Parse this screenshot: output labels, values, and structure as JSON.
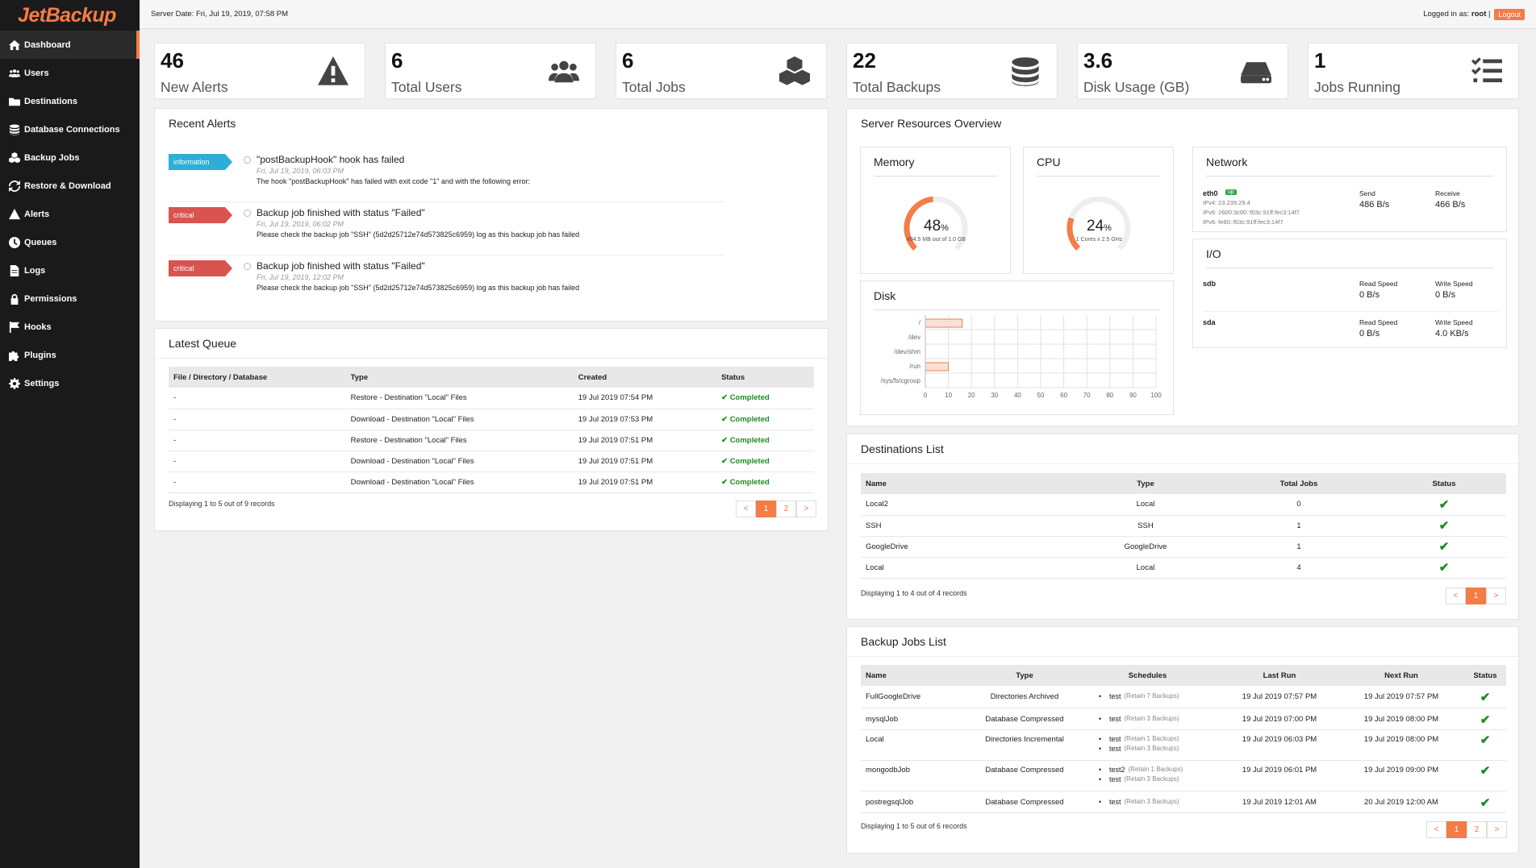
{
  "brand": {
    "logo_text": "JetBackup"
  },
  "sidebar": {
    "items": [
      {
        "label": "Dashboard",
        "icon": "home-icon"
      },
      {
        "label": "Users",
        "icon": "users-icon"
      },
      {
        "label": "Destinations",
        "icon": "folder-icon"
      },
      {
        "label": "Database Connections",
        "icon": "database-icon"
      },
      {
        "label": "Backup Jobs",
        "icon": "cubes-icon"
      },
      {
        "label": "Restore & Download",
        "icon": "sync-icon"
      },
      {
        "label": "Alerts",
        "icon": "warning-icon"
      },
      {
        "label": "Queues",
        "icon": "clock-icon"
      },
      {
        "label": "Logs",
        "icon": "file-icon"
      },
      {
        "label": "Permissions",
        "icon": "lock-icon"
      },
      {
        "label": "Hooks",
        "icon": "flag-icon"
      },
      {
        "label": "Plugins",
        "icon": "puzzle-icon"
      },
      {
        "label": "Settings",
        "icon": "gear-icon"
      }
    ]
  },
  "topbar": {
    "server_date": "Server Date: Fri, Jul 19, 2019, 07:58 PM",
    "logged_in": "Logged in as:",
    "user": "root",
    "sep": "|",
    "logout": "Logout"
  },
  "stats": [
    {
      "value": "46",
      "label": "New Alerts",
      "icon": "warning-icon"
    },
    {
      "value": "6",
      "label": "Total Users",
      "icon": "users-icon"
    },
    {
      "value": "6",
      "label": "Total Jobs",
      "icon": "cubes-icon"
    },
    {
      "value": "22",
      "label": "Total Backups",
      "icon": "database-icon"
    },
    {
      "value": "3.6",
      "label": "Disk Usage (GB)",
      "icon": "hdd-icon"
    },
    {
      "value": "1",
      "label": "Jobs Running",
      "icon": "tasks-icon"
    }
  ],
  "recent_alerts": {
    "title": "Recent Alerts",
    "items": [
      {
        "level": "information",
        "title": "\"postBackupHook\" hook has failed",
        "date": "Fri, Jul 19, 2019, 06:03 PM",
        "message": "The hook \"postBackupHook\" has failed with exit code \"1\" and with the following error:"
      },
      {
        "level": "critical",
        "title": "Backup job finished with status \"Failed\"",
        "date": "Fri, Jul 19, 2019, 06:02 PM",
        "message": "Please check the backup job \"SSH\" (5d2d25712e74d573825c6959) log as this backup job has failed"
      },
      {
        "level": "critical",
        "title": "Backup job finished with status \"Failed\"",
        "date": "Fri, Jul 19, 2019, 12:02 PM",
        "message": "Please check the backup job \"SSH\" (5d2d25712e74d573825c6959) log as this backup job has failed"
      }
    ]
  },
  "queue": {
    "title": "Latest Queue",
    "headers": [
      "File / Directory / Database",
      "Type",
      "Created",
      "Status"
    ],
    "rows": [
      [
        "-",
        "Restore - Destination \"Local\" Files",
        "19 Jul 2019 07:54 PM",
        "Completed"
      ],
      [
        "-",
        "Download - Destination \"Local\" Files",
        "19 Jul 2019 07:53 PM",
        "Completed"
      ],
      [
        "-",
        "Restore - Destination \"Local\" Files",
        "19 Jul 2019 07:51 PM",
        "Completed"
      ],
      [
        "-",
        "Download - Destination \"Local\" Files",
        "19 Jul 2019 07:51 PM",
        "Completed"
      ],
      [
        "-",
        "Download - Destination \"Local\" Files",
        "19 Jul 2019 07:51 PM",
        "Completed"
      ]
    ],
    "footer": "Displaying 1 to 5 out of 9 records",
    "pages": [
      "<",
      "1",
      "2",
      ">"
    ]
  },
  "resources": {
    "title": "Server Resources Overview",
    "memory": {
      "title": "Memory",
      "percent": 48,
      "value": "48",
      "unit": "%",
      "detail": "494.5 MB out of 1.0 GB"
    },
    "cpu": {
      "title": "CPU",
      "percent": 24,
      "value": "24",
      "unit": "%",
      "detail": "1 Cores x 2.5 GHz"
    },
    "network": {
      "title": "Network",
      "iface": "eth0",
      "status": "up",
      "ipv4": "IPv4: 23.239.29.4",
      "ipv6a": "IPv6: 2600:3c00::f03c:91ff:fec3:14f7",
      "ipv6b": "IPv6: fe80::f03c:91ff:fec3:14f7",
      "send_label": "Send",
      "send": "486 B/s",
      "receive_label": "Receive",
      "receive": "466 B/s"
    },
    "io": {
      "title": "I/O",
      "devices": [
        {
          "name": "sdb",
          "read_label": "Read Speed",
          "read": "0 B/s",
          "write_label": "Write Speed",
          "write": "0 B/s"
        },
        {
          "name": "sda",
          "read_label": "Read Speed",
          "read": "0 B/s",
          "write_label": "Write Speed",
          "write": "4.0 KB/s"
        }
      ]
    },
    "disk": {
      "title": "Disk"
    }
  },
  "chart_data": {
    "type": "bar",
    "orientation": "horizontal",
    "categories": [
      "/",
      "/dev",
      "/dev/shm",
      "/run",
      "/sys/fs/cgroup"
    ],
    "values": [
      16,
      0,
      0,
      10,
      0
    ],
    "xlim": [
      0,
      100
    ],
    "xticks": [
      "0",
      "10",
      "20",
      "30",
      "40",
      "50",
      "60",
      "70",
      "80",
      "90",
      "100"
    ],
    "grid": true,
    "color": "#f47c45"
  },
  "destinations": {
    "title": "Destinations List",
    "headers": [
      "Name",
      "Type",
      "Total Jobs",
      "Status"
    ],
    "rows": [
      [
        "Local2",
        "Local",
        "0"
      ],
      [
        "SSH",
        "SSH",
        "1"
      ],
      [
        "GoogleDrive",
        "GoogleDrive",
        "1"
      ],
      [
        "Local",
        "Local",
        "4"
      ]
    ],
    "footer": "Displaying 1 to 4 out of 4 records",
    "pages": [
      "<",
      "1",
      ">"
    ]
  },
  "backup_jobs": {
    "title": "Backup Jobs List",
    "headers": [
      "Name",
      "Type",
      "Schedules",
      "Last Run",
      "Next Run",
      "Status"
    ],
    "rows": [
      {
        "name": "FullGoogleDrive",
        "type": "Directories Archived",
        "schedules": [
          {
            "name": "test",
            "retain": "(Retain 7 Backups)"
          }
        ],
        "last": "19 Jul 2019 07:57 PM",
        "next": "19 Jul 2019 07:57 PM"
      },
      {
        "name": "mysqlJob",
        "type": "Database Compressed",
        "schedules": [
          {
            "name": "test",
            "retain": "(Retain 3 Backups)"
          }
        ],
        "last": "19 Jul 2019 07:00 PM",
        "next": "19 Jul 2019 08:00 PM"
      },
      {
        "name": "Local",
        "type": "Directories Incremental",
        "schedules": [
          {
            "name": "test",
            "retain": "(Retain 1 Backups)"
          },
          {
            "name": "test",
            "retain": "(Retain 3 Backups)"
          }
        ],
        "last": "19 Jul 2019 06:03 PM",
        "next": "19 Jul 2019 08:00 PM"
      },
      {
        "name": "mongodbJob",
        "type": "Database Compressed",
        "schedules": [
          {
            "name": "test2",
            "retain": "(Retain 1 Backups)"
          },
          {
            "name": "test",
            "retain": "(Retain 3 Backups)"
          }
        ],
        "last": "19 Jul 2019 06:01 PM",
        "next": "19 Jul 2019 09:00 PM"
      },
      {
        "name": "postregsqlJob",
        "type": "Database Compressed",
        "schedules": [
          {
            "name": "test",
            "retain": "(Retain 3 Backups)"
          }
        ],
        "last": "19 Jul 2019 12:01 AM",
        "next": "20 Jul 2019 12:00 AM"
      }
    ],
    "footer": "Displaying 1 to 5 out of 6 records",
    "pages": [
      "<",
      "1",
      "2",
      ">"
    ]
  },
  "colors": {
    "accent": "#f47c45",
    "success": "#1f8a1f",
    "info": "#2eaed6",
    "critical": "#d9534f"
  }
}
